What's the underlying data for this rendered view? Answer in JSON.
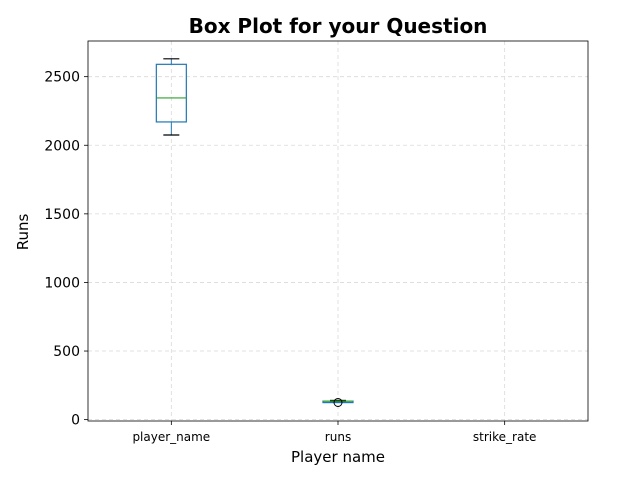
{
  "chart_data": {
    "type": "box",
    "title": "Box Plot for your Question",
    "xlabel": "Player name",
    "ylabel": "Runs",
    "categories": [
      "player_name",
      "runs",
      "strike_rate"
    ],
    "boxes": [
      {
        "category": "player_name",
        "whisker_low": 2075,
        "q1": 2170,
        "median": 2345,
        "q3": 2590,
        "whisker_high": 2630,
        "outliers": []
      },
      {
        "category": "runs",
        "whisker_low": 130,
        "q1": 130,
        "median": 135,
        "q3": 135,
        "whisker_high": 140,
        "outliers": [
          125
        ]
      },
      {
        "category": "strike_rate",
        "whisker_low": null,
        "q1": null,
        "median": null,
        "q3": null,
        "whisker_high": null,
        "outliers": []
      }
    ],
    "yticks": [
      0,
      500,
      1000,
      1500,
      2000,
      2500
    ],
    "ylim": [
      -10,
      2760
    ],
    "grid": true,
    "colors": {
      "box": "#1f77b4",
      "median": "#2ca02c",
      "whisker": "#000000",
      "grid": "#d9d9d9"
    }
  }
}
